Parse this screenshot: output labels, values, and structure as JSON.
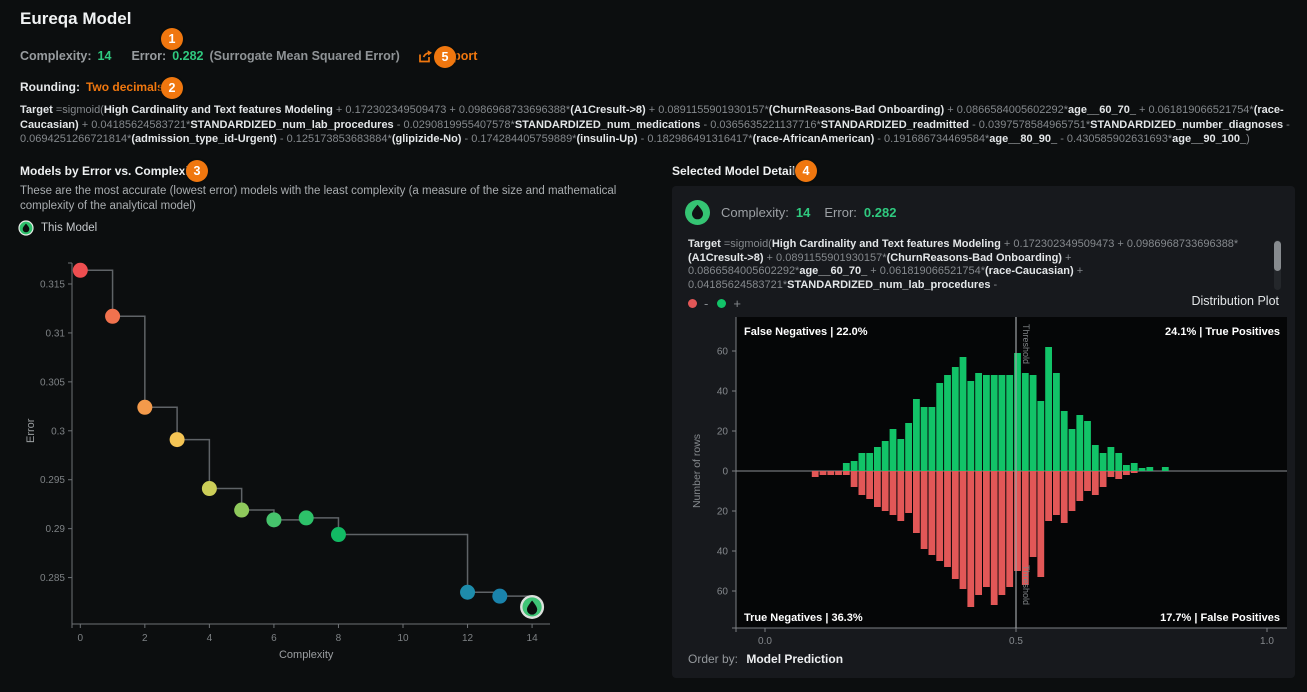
{
  "header": {
    "title": "Eureqa Model",
    "complexity_label": "Complexity:",
    "complexity_value": "14",
    "error_label": "Error:",
    "error_value": "0.282",
    "error_note": "(Surrogate Mean Squared Error)",
    "export_label": "Export",
    "rounding_label": "Rounding:",
    "rounding_value": "Two decimals"
  },
  "annotations": {
    "one": "1",
    "two": "2",
    "three": "3",
    "four": "4",
    "five": "5"
  },
  "colors": {
    "accent_orange": "#f0770f",
    "accent_green": "#2fc97f",
    "histogram_green": "#12c368",
    "histogram_red": "#e25757",
    "this_model_green": "#3fc476"
  },
  "formula_segments": [
    {
      "t": "Target ",
      "b": true
    },
    {
      "t": "=sigmoid(",
      "b": false
    },
    {
      "t": "High Cardinality and Text features Modeling",
      "b": true
    },
    {
      "t": " + 0.172302349509473 + 0.0986968733696388*",
      "b": false
    },
    {
      "t": "(A1Cresult->8)",
      "b": true
    },
    {
      "t": " + 0.0891155901930157*",
      "b": false
    },
    {
      "t": "(ChurnReasons-Bad Onboarding)",
      "b": true
    },
    {
      "t": " + 0.0866584005602292*",
      "b": false
    },
    {
      "t": "age__60_70_",
      "b": true
    },
    {
      "t": " + 0.061819066521754*",
      "b": false
    },
    {
      "t": "(race-Caucasian)",
      "b": true
    },
    {
      "t": " + 0.04185624583721*",
      "b": false
    },
    {
      "t": "STANDARDIZED_num_lab_procedures",
      "b": true
    },
    {
      "t": " - 0.0290819955407578*",
      "b": false
    },
    {
      "t": "STANDARDIZED_num_medications",
      "b": true
    },
    {
      "t": " - 0.0365635221137716*",
      "b": false
    },
    {
      "t": "STANDARDIZED_readmitted",
      "b": true
    },
    {
      "t": " - 0.0397578584965751*",
      "b": false
    },
    {
      "t": "STANDARDIZED_number_diagnoses",
      "b": true
    },
    {
      "t": " - 0.0694251266721814*",
      "b": false
    },
    {
      "t": "(admission_type_id-Urgent)",
      "b": true
    },
    {
      "t": " - 0.125173853683884*",
      "b": false
    },
    {
      "t": "(glipizide-No)",
      "b": true
    },
    {
      "t": " - 0.174284405759889*",
      "b": false
    },
    {
      "t": "(insulin-Up)",
      "b": true
    },
    {
      "t": " - 0.182986491316417*",
      "b": false
    },
    {
      "t": "(race-AfricanAmerican)",
      "b": true
    },
    {
      "t": " - 0.191686734469584*",
      "b": false
    },
    {
      "t": "age__80_90_",
      "b": true
    },
    {
      "t": " - 0.430585902631693*",
      "b": false
    },
    {
      "t": "age__90_100_",
      "b": true
    },
    {
      "t": ")",
      "b": false
    }
  ],
  "left_panel": {
    "title": "Models by Error vs. Complexity",
    "description": "These are the most accurate (lowest error) models with the least complexity (a measure of the size and mathematical complexity of the analytical model)",
    "legend_label": "This Model",
    "chart_data": {
      "type": "scatter",
      "title": "Models by Error vs. Complexity",
      "xlabel": "Complexity",
      "ylabel": "Error",
      "x_ticks": [
        0,
        2,
        4,
        6,
        8,
        10,
        12,
        14
      ],
      "y_ticks": [
        0.315,
        0.31,
        0.305,
        0.3,
        0.295,
        0.29,
        0.285
      ],
      "xlim": [
        -0.5,
        14.5
      ],
      "ylim": [
        0.2803,
        0.3178
      ],
      "line_style": "step-after",
      "points": [
        {
          "x": 0,
          "y": 0.3164,
          "color": "#ee4e50"
        },
        {
          "x": 1,
          "y": 0.3117,
          "color": "#f1724e"
        },
        {
          "x": 2,
          "y": 0.3024,
          "color": "#f49a4b"
        },
        {
          "x": 3,
          "y": 0.2991,
          "color": "#f4c454"
        },
        {
          "x": 4,
          "y": 0.2941,
          "color": "#ccce58"
        },
        {
          "x": 5,
          "y": 0.2919,
          "color": "#8fc95c"
        },
        {
          "x": 6,
          "y": 0.2909,
          "color": "#46c36c"
        },
        {
          "x": 7,
          "y": 0.2911,
          "color": "#2dc169"
        },
        {
          "x": 8,
          "y": 0.2894,
          "color": "#12ba64"
        },
        {
          "x": 12,
          "y": 0.2835,
          "color": "#1e8cab"
        },
        {
          "x": 13,
          "y": 0.2831,
          "color": "#1a83ac"
        },
        {
          "x": 14,
          "y": 0.282,
          "color": "this-model"
        }
      ]
    }
  },
  "right_panel": {
    "title": "Selected Model Detail",
    "complexity_label": "Complexity:",
    "complexity_value": "14",
    "error_label": "Error:",
    "error_value": "0.282",
    "legend_minus": "-",
    "legend_plus": "+",
    "plot_label": "Distribution Plot",
    "order_by_label": "Order by:",
    "order_by_value": "Model Prediction",
    "chart_data": {
      "type": "bar",
      "title": "Distribution Plot",
      "xlabel": "",
      "ylabel": "Number of rows",
      "x_ticks": [
        "0.0",
        "0.5",
        "1.0"
      ],
      "y_ticks": [
        60,
        40,
        20,
        0,
        20,
        40,
        60
      ],
      "xlim": [
        -0.06,
        1.06
      ],
      "ylim": [
        -77,
        77
      ],
      "threshold": 0.5,
      "threshold_label": "Threshold",
      "corner_labels": {
        "top_left": "False Negatives | 22.0%",
        "top_right": "24.1% | True Positives",
        "bottom_left": "True Negatives | 36.3%",
        "bottom_right": "17.7% | False Positives"
      },
      "bin_start": 0.1,
      "bin_step": 0.0155,
      "positive_color": "#12c368",
      "negative_color": "#e25757",
      "positives": [
        0,
        0,
        0,
        0,
        4,
        5,
        9,
        9,
        12,
        15,
        21,
        16,
        24,
        36,
        32,
        32,
        44,
        48,
        52,
        57,
        45,
        49,
        48,
        48,
        48,
        48,
        59,
        49,
        48,
        35,
        62,
        49,
        30,
        21,
        28,
        25,
        13,
        9,
        12,
        9,
        3,
        4,
        1.5,
        2,
        0,
        2
      ],
      "negatives": [
        3,
        2,
        2,
        2,
        2,
        8,
        12,
        14,
        18,
        20,
        22,
        25,
        21,
        31,
        39,
        42,
        45,
        48,
        54,
        59,
        68,
        62,
        58,
        67,
        62,
        58,
        50,
        57,
        43,
        53,
        25,
        22,
        26,
        20,
        15,
        10,
        12,
        8,
        3,
        4,
        2,
        1,
        0,
        0,
        0,
        0
      ]
    }
  }
}
